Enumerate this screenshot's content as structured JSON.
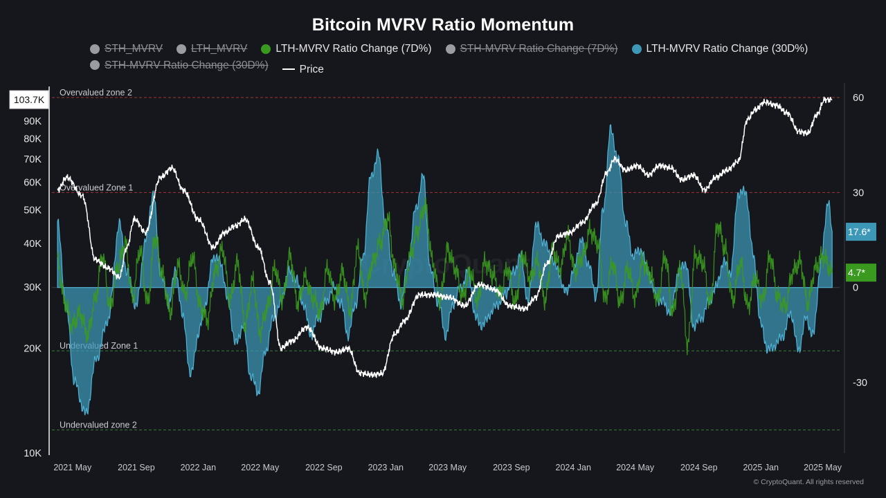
{
  "title": "Bitcoin MVRV Ratio Momentum",
  "legend": [
    {
      "label": "STH_MVRV",
      "color": "#9b9ca1",
      "shape": "dot",
      "active": false
    },
    {
      "label": "LTH_MVRV",
      "color": "#9b9ca1",
      "shape": "dot",
      "active": false
    },
    {
      "label": "LTH-MVRV Ratio Change (7D%)",
      "color": "#3a9a1f",
      "shape": "dot",
      "active": true
    },
    {
      "label": "STH-MVRV Ratio Change (7D%)",
      "color": "#9b9ca1",
      "shape": "dot",
      "active": false
    },
    {
      "label": "LTH-MVRV Ratio Change (30D%)",
      "color": "#3d98b8",
      "shape": "dot",
      "active": true
    },
    {
      "label": "STH-MVRV Ratio Change (30D%)",
      "color": "#9b9ca1",
      "shape": "dot",
      "active": false
    },
    {
      "label": "Price",
      "color": "#ffffff",
      "shape": "line",
      "active": true
    }
  ],
  "footer": "© CryptoQuant. All rights reserved",
  "colors": {
    "background": "#16171c",
    "lth7d": "#3a9a1f",
    "lth30d": "#3d98b8",
    "price": "#ffffff",
    "overvalued": "#c0393b",
    "undervalued": "#3f8f3a"
  },
  "chart_data": {
    "type": "line",
    "x_ticks": [
      "2021 May",
      "2021 Sep",
      "2022 Jan",
      "2022 May",
      "2022 Sep",
      "2023 Jan",
      "2023 May",
      "2023 Sep",
      "2024 Jan",
      "2024 May",
      "2024 Sep",
      "2025 Jan",
      "2025 May"
    ],
    "left_axis": {
      "label": "Price",
      "scale": "log",
      "range": [
        10000,
        110000
      ],
      "ticks": [
        "10K",
        "20K",
        "30K",
        "40K",
        "50K",
        "60K",
        "70K",
        "80K",
        "90K"
      ],
      "ticks_values": [
        10000,
        20000,
        30000,
        40000,
        50000,
        60000,
        70000,
        80000,
        90000
      ],
      "current_label": "103.7K",
      "current_value": 103700
    },
    "right_axis": {
      "scale": "linear",
      "range": [
        -52,
        62
      ],
      "ticks": [
        "60",
        "30",
        "0",
        "-30"
      ],
      "ticks_values": [
        60,
        30,
        0,
        -30
      ],
      "badges": [
        {
          "text": "17.6*",
          "value": 17.6,
          "color": "#3d98b8"
        },
        {
          "text": "4.7*",
          "value": 4.7,
          "color": "#3a9a1f"
        }
      ]
    },
    "reference_lines": [
      {
        "label": "Overvalued zone 2",
        "value": 60,
        "color": "#c0393b"
      },
      {
        "label": "Overvalued Zone 1",
        "value": 30,
        "color": "#c0393b"
      },
      {
        "label": "Undervalued Zone 1",
        "value": -20,
        "color": "#3f8f3a"
      },
      {
        "label": "Undervalued zone 2",
        "value": -45,
        "color": "#3f8f3a"
      }
    ],
    "watermark": "CryptoQuant",
    "series": [
      {
        "name": "Price",
        "axis": "left",
        "x": [
          2021.25,
          2021.3,
          2021.38,
          2021.45,
          2021.52,
          2021.58,
          2021.62,
          2021.66,
          2021.72,
          2021.8,
          2021.86,
          2021.92,
          2022.0,
          2022.08,
          2022.14,
          2022.2,
          2022.25,
          2022.32,
          2022.38,
          2022.44,
          2022.5,
          2022.58,
          2022.66,
          2022.74,
          2022.8,
          2022.86,
          2022.92,
          2022.98,
          2023.05,
          2023.1,
          2023.18,
          2023.26,
          2023.34,
          2023.42,
          2023.5,
          2023.58,
          2023.66,
          2023.74,
          2023.8,
          2023.86,
          2023.92,
          2023.98,
          2024.05,
          2024.12,
          2024.18,
          2024.22,
          2024.28,
          2024.34,
          2024.4,
          2024.46,
          2024.52,
          2024.58,
          2024.64,
          2024.7,
          2024.76,
          2024.82,
          2024.88,
          2024.93,
          2024.97,
          2025.02,
          2025.08,
          2025.14,
          2025.2,
          2025.25,
          2025.3,
          2025.34,
          2025.38
        ],
        "y": [
          57000,
          62000,
          55000,
          36000,
          34000,
          32000,
          39000,
          47000,
          43000,
          62000,
          66000,
          57000,
          47000,
          39000,
          43000,
          45000,
          47000,
          39000,
          31000,
          20000,
          21000,
          23000,
          20000,
          19500,
          20000,
          17000,
          16800,
          16900,
          22000,
          24000,
          28500,
          28500,
          28000,
          26500,
          30500,
          29500,
          26500,
          26000,
          28000,
          35000,
          42000,
          43000,
          46000,
          52000,
          64000,
          70000,
          65000,
          67000,
          63000,
          67000,
          66000,
          61000,
          63000,
          57000,
          62000,
          65000,
          69000,
          91000,
          97000,
          102000,
          100000,
          95000,
          84000,
          83000,
          94000,
          103700,
          103700
        ]
      },
      {
        "name": "LTH-MVRV Ratio Change (30D%)",
        "axis": "right",
        "x": [
          2021.25,
          2021.3,
          2021.34,
          2021.4,
          2021.46,
          2021.52,
          2021.58,
          2021.62,
          2021.67,
          2021.72,
          2021.76,
          2021.8,
          2021.84,
          2021.88,
          2021.92,
          2021.96,
          2022.0,
          2022.04,
          2022.08,
          2022.12,
          2022.16,
          2022.2,
          2022.24,
          2022.28,
          2022.32,
          2022.36,
          2022.4,
          2022.44,
          2022.48,
          2022.52,
          2022.56,
          2022.6,
          2022.64,
          2022.68,
          2022.72,
          2022.76,
          2022.8,
          2022.84,
          2022.88,
          2022.92,
          2022.96,
          2023.0,
          2023.04,
          2023.08,
          2023.12,
          2023.16,
          2023.2,
          2023.24,
          2023.28,
          2023.32,
          2023.36,
          2023.4,
          2023.44,
          2023.48,
          2023.52,
          2023.56,
          2023.6,
          2023.64,
          2023.68,
          2023.72,
          2023.76,
          2023.8,
          2023.84,
          2023.88,
          2023.92,
          2023.96,
          2024.0,
          2024.04,
          2024.08,
          2024.12,
          2024.16,
          2024.2,
          2024.24,
          2024.28,
          2024.32,
          2024.36,
          2024.4,
          2024.44,
          2024.48,
          2024.52,
          2024.56,
          2024.6,
          2024.64,
          2024.68,
          2024.72,
          2024.76,
          2024.8,
          2024.84,
          2024.88,
          2024.92,
          2024.96,
          2025.0,
          2025.04,
          2025.08,
          2025.12,
          2025.16,
          2025.2,
          2025.24,
          2025.28,
          2025.32,
          2025.36,
          2025.38
        ],
        "y": [
          20,
          -8,
          -30,
          -40,
          -22,
          -10,
          20,
          5,
          -6,
          15,
          30,
          5,
          -5,
          5,
          -10,
          -28,
          -15,
          -5,
          10,
          8,
          -5,
          -18,
          -12,
          -28,
          -33,
          -20,
          -10,
          -5,
          5,
          3,
          -5,
          -15,
          -10,
          -5,
          0,
          -5,
          -15,
          -5,
          10,
          35,
          42,
          20,
          5,
          -5,
          8,
          25,
          35,
          5,
          -5,
          -15,
          -5,
          0,
          5,
          -10,
          -12,
          -8,
          -5,
          -2,
          5,
          10,
          -5,
          20,
          15,
          10,
          5,
          -2,
          5,
          15,
          8,
          -3,
          25,
          50,
          40,
          20,
          10,
          12,
          5,
          -3,
          -5,
          -8,
          5,
          8,
          -12,
          -10,
          -5,
          0,
          8,
          5,
          30,
          30,
          10,
          -12,
          -20,
          -18,
          -15,
          -8,
          -20,
          -10,
          -15,
          8,
          28,
          17.6
        ]
      },
      {
        "name": "LTH-MVRV Ratio Change (7D%)",
        "axis": "right",
        "x": [
          2021.25,
          2021.29,
          2021.33,
          2021.37,
          2021.41,
          2021.45,
          2021.49,
          2021.53,
          2021.57,
          2021.61,
          2021.65,
          2021.69,
          2021.73,
          2021.77,
          2021.81,
          2021.85,
          2021.89,
          2021.93,
          2021.97,
          2022.01,
          2022.05,
          2022.09,
          2022.13,
          2022.17,
          2022.21,
          2022.25,
          2022.29,
          2022.33,
          2022.37,
          2022.41,
          2022.45,
          2022.49,
          2022.53,
          2022.57,
          2022.61,
          2022.65,
          2022.69,
          2022.73,
          2022.77,
          2022.81,
          2022.85,
          2022.89,
          2022.93,
          2022.97,
          2023.01,
          2023.05,
          2023.09,
          2023.13,
          2023.17,
          2023.21,
          2023.25,
          2023.29,
          2023.33,
          2023.37,
          2023.41,
          2023.45,
          2023.49,
          2023.53,
          2023.57,
          2023.61,
          2023.65,
          2023.69,
          2023.73,
          2023.77,
          2023.81,
          2023.85,
          2023.89,
          2023.93,
          2023.97,
          2024.01,
          2024.05,
          2024.09,
          2024.13,
          2024.17,
          2024.21,
          2024.25,
          2024.29,
          2024.33,
          2024.37,
          2024.41,
          2024.45,
          2024.49,
          2024.53,
          2024.57,
          2024.61,
          2024.65,
          2024.69,
          2024.73,
          2024.77,
          2024.81,
          2024.85,
          2024.89,
          2024.93,
          2024.97,
          2025.01,
          2025.05,
          2025.09,
          2025.13,
          2025.17,
          2025.21,
          2025.25,
          2025.29,
          2025.33,
          2025.38
        ],
        "y": [
          8,
          -5,
          -12,
          -8,
          -15,
          -4,
          10,
          -6,
          6,
          14,
          -3,
          12,
          -5,
          16,
          4,
          -8,
          7,
          -2,
          10,
          -6,
          -10,
          5,
          12,
          -4,
          8,
          -12,
          2,
          -14,
          -6,
          6,
          -4,
          10,
          -5,
          3,
          -3,
          -8,
          6,
          -4,
          5,
          -7,
          12,
          -3,
          8,
          14,
          22,
          6,
          -4,
          10,
          18,
          26,
          8,
          -4,
          12,
          6,
          -3,
          5,
          -4,
          8,
          4,
          -2,
          6,
          -5,
          10,
          3,
          8,
          -4,
          12,
          6,
          16,
          5,
          10,
          18,
          14,
          -4,
          8,
          -5,
          6,
          -3,
          8,
          4,
          -4,
          10,
          -8,
          6,
          -18,
          10,
          8,
          -5,
          20,
          12,
          -4,
          8,
          -6,
          3,
          -4,
          10,
          -3,
          -6,
          5,
          8,
          -5,
          6,
          10,
          4.7
        ]
      }
    ]
  }
}
